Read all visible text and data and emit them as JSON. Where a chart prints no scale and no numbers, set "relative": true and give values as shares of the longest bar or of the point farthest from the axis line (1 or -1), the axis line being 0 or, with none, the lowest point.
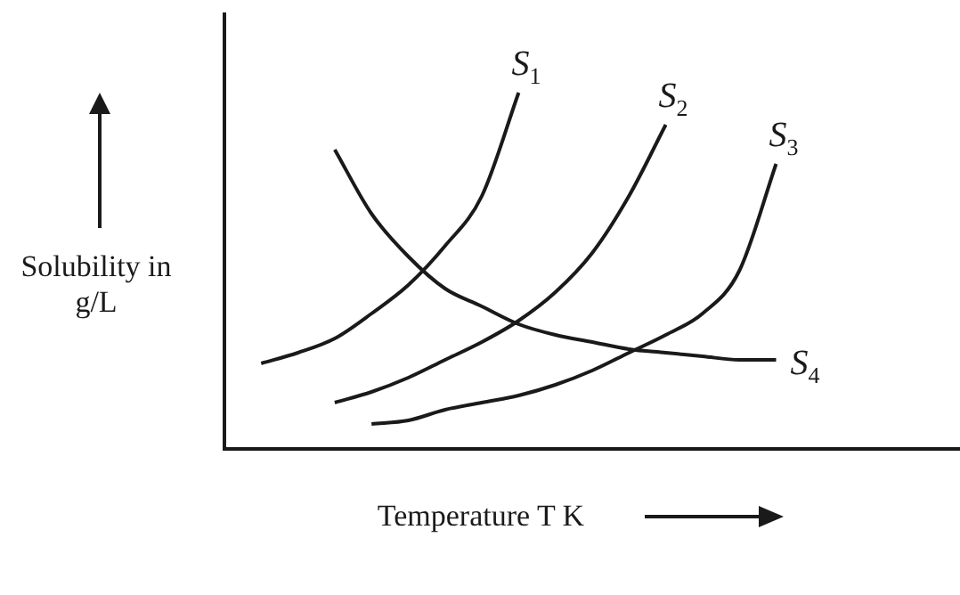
{
  "chart_data": {
    "type": "line",
    "relative": true,
    "xlabel": "Temperature T K",
    "ylabel": "Solubility in g/L",
    "tick_labels": false,
    "grid": false,
    "legend": false,
    "marker": "none",
    "categories": [
      null,
      null,
      null,
      null,
      null,
      null,
      null,
      null,
      null,
      null,
      null,
      null,
      null,
      null,
      null,
      null,
      null,
      null,
      null,
      null,
      null
    ],
    "series": [
      {
        "name": "S$_{1}$",
        "color": "#1a1a1a",
        "values": [
          null,
          0.24,
          0.27,
          0.31,
          0.38,
          0.46,
          0.57,
          0.71,
          1.0,
          null,
          null,
          null,
          null,
          null,
          null,
          null,
          null,
          null,
          null,
          null,
          null
        ]
      },
      {
        "name": "S$_{2}$",
        "color": "#1a1a1a",
        "values": [
          null,
          null,
          null,
          0.13,
          0.16,
          0.2,
          0.25,
          0.3,
          0.36,
          0.44,
          0.55,
          0.71,
          0.91,
          null,
          null,
          null,
          null,
          null,
          null,
          null,
          null
        ]
      },
      {
        "name": "S$_{3}$",
        "color": "#1a1a1a",
        "values": [
          null,
          null,
          null,
          null,
          0.07,
          0.08,
          0.11,
          0.13,
          0.15,
          0.18,
          0.22,
          0.27,
          0.32,
          0.38,
          0.5,
          0.8,
          null,
          null,
          null,
          null,
          null
        ]
      },
      {
        "name": "S$_{4}$",
        "color": "#1a1a1a",
        "values": [
          null,
          null,
          null,
          0.84,
          0.66,
          0.54,
          0.45,
          0.4,
          0.35,
          0.32,
          0.3,
          0.28,
          0.27,
          0.26,
          0.25,
          0.25,
          null,
          null,
          null,
          null,
          null
        ]
      }
    ]
  }
}
